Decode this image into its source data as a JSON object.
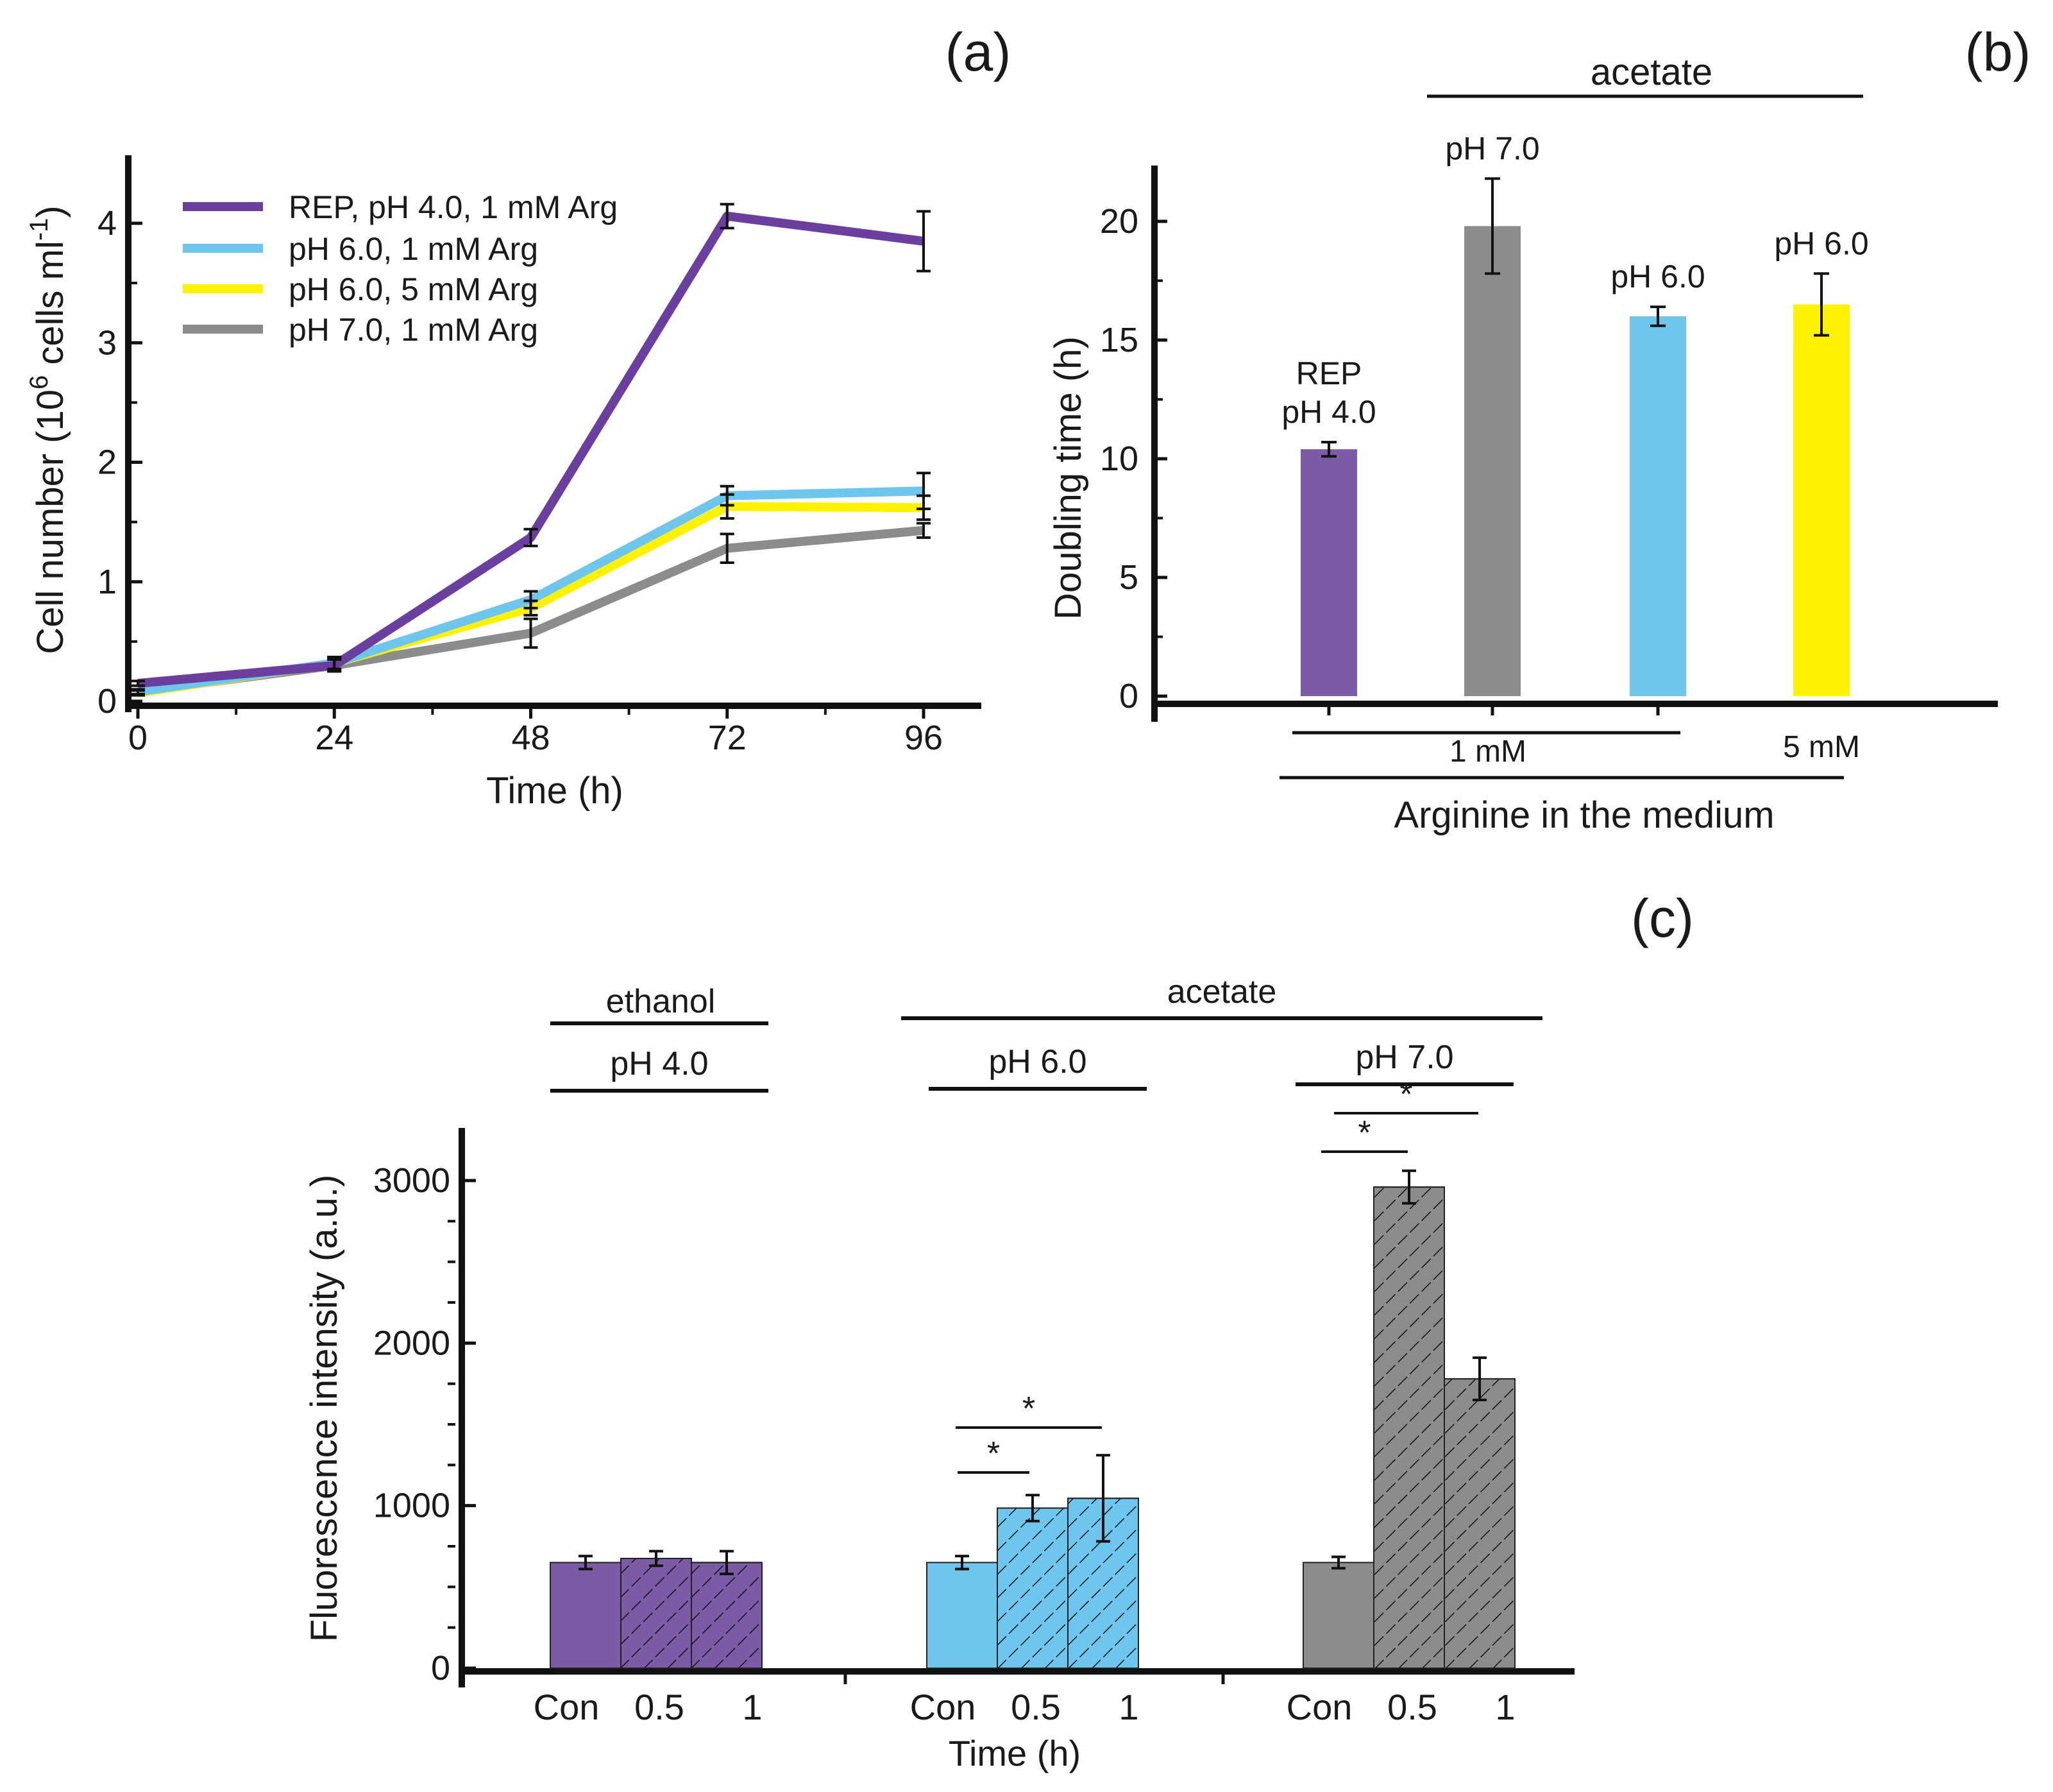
{
  "colors": {
    "purple": "#7b5aa6",
    "line_purple": "#6b3fa0",
    "blue": "#6ec6ee",
    "yellow": "#fff200",
    "gray": "#8c8c8c",
    "axis": "#111111"
  },
  "chart_data": [
    {
      "id": "a",
      "panel_label": "(a)",
      "type": "line",
      "title": "",
      "xlabel": "Time (h)",
      "ylabel": "Cell number (10⁶ cells ml⁻¹)",
      "ylabel_parts": {
        "main": "Cell number (10",
        "sup1": "6",
        "mid": " cells ml",
        "sup2": "-1",
        "end": ")"
      },
      "xlim": [
        0,
        104
      ],
      "ylim": [
        0,
        4.5
      ],
      "x": [
        0,
        24,
        48,
        72,
        96
      ],
      "xticks": [
        "0",
        "24",
        "48",
        "72",
        "96"
      ],
      "yticks": [
        "0",
        "1",
        "2",
        "3",
        "4"
      ],
      "legend_position": "top-left",
      "series": [
        {
          "name": "REP, pH 4.0, 1 mM Arg",
          "color": "#6b3fa0",
          "values": [
            0.15,
            0.3,
            1.37,
            4.06,
            3.85
          ],
          "errors": [
            0.02,
            0.05,
            0.07,
            0.1,
            0.25
          ]
        },
        {
          "name": "pH 6.0, 1 mM Arg",
          "color": "#6ec6ee",
          "values": [
            0.08,
            0.32,
            0.85,
            1.72,
            1.76
          ],
          "errors": [
            0.02,
            0.05,
            0.07,
            0.08,
            0.15
          ]
        },
        {
          "name": "pH 6.0, 5 mM Arg",
          "color": "#fff200",
          "values": [
            0.07,
            0.32,
            0.78,
            1.63,
            1.62
          ],
          "errors": [
            0.02,
            0.05,
            0.06,
            0.1,
            0.1
          ]
        },
        {
          "name": "pH 7.0, 1 mM Arg",
          "color": "#8c8c8c",
          "values": [
            0.08,
            0.3,
            0.57,
            1.28,
            1.43
          ],
          "errors": [
            0.02,
            0.05,
            0.12,
            0.12,
            0.06
          ]
        }
      ]
    },
    {
      "id": "b",
      "panel_label": "(b)",
      "type": "bar",
      "ylabel": "Doubling time (h)",
      "xlabel": "Arginine in the medium",
      "ylim": [
        0,
        22.5
      ],
      "yticks": [
        "0",
        "5",
        "10",
        "15",
        "20"
      ],
      "categories": [
        "REP pH 4.0",
        "pH 7.0",
        "pH 6.0",
        "pH 6.0"
      ],
      "bar_labels": [
        [
          "REP",
          "pH 4.0"
        ],
        [
          "pH 7.0"
        ],
        [
          "pH 6.0"
        ],
        [
          "pH 6.0"
        ]
      ],
      "values": [
        10.4,
        19.8,
        16.0,
        16.5
      ],
      "errors": [
        0.3,
        2.0,
        0.4,
        1.3
      ],
      "colors": [
        "#7b5aa6",
        "#8c8c8c",
        "#6ec6ee",
        "#fff200"
      ],
      "group_labels": {
        "top": "acetate",
        "low_dose": "1 mM",
        "high_dose": "5 mM"
      }
    },
    {
      "id": "c",
      "panel_label": "(c)",
      "type": "bar",
      "ylabel": "Fluorescence intensity (a.u.)",
      "xlabel": "Time (h)",
      "ylim": [
        0,
        3350
      ],
      "yticks": [
        "0",
        "1000",
        "2000",
        "3000"
      ],
      "categories": [
        "Con",
        "0.5",
        "1"
      ],
      "groups": [
        {
          "name": "pH 4.0",
          "medium": "ethanol",
          "color": "#7b5aa6",
          "values": [
            650,
            675,
            650
          ],
          "errors": [
            40,
            45,
            70
          ]
        },
        {
          "name": "pH 6.0",
          "medium": "acetate",
          "color": "#6ec6ee",
          "values": [
            650,
            985,
            1045
          ],
          "errors": [
            40,
            80,
            265
          ]
        },
        {
          "name": "pH 7.0",
          "medium": "acetate",
          "color": "#8c8c8c",
          "values": [
            650,
            2960,
            1780
          ],
          "errors": [
            35,
            100,
            130
          ]
        }
      ],
      "medium_labels": {
        "left": "ethanol",
        "right": "acetate"
      },
      "significance_mark": "*"
    }
  ]
}
